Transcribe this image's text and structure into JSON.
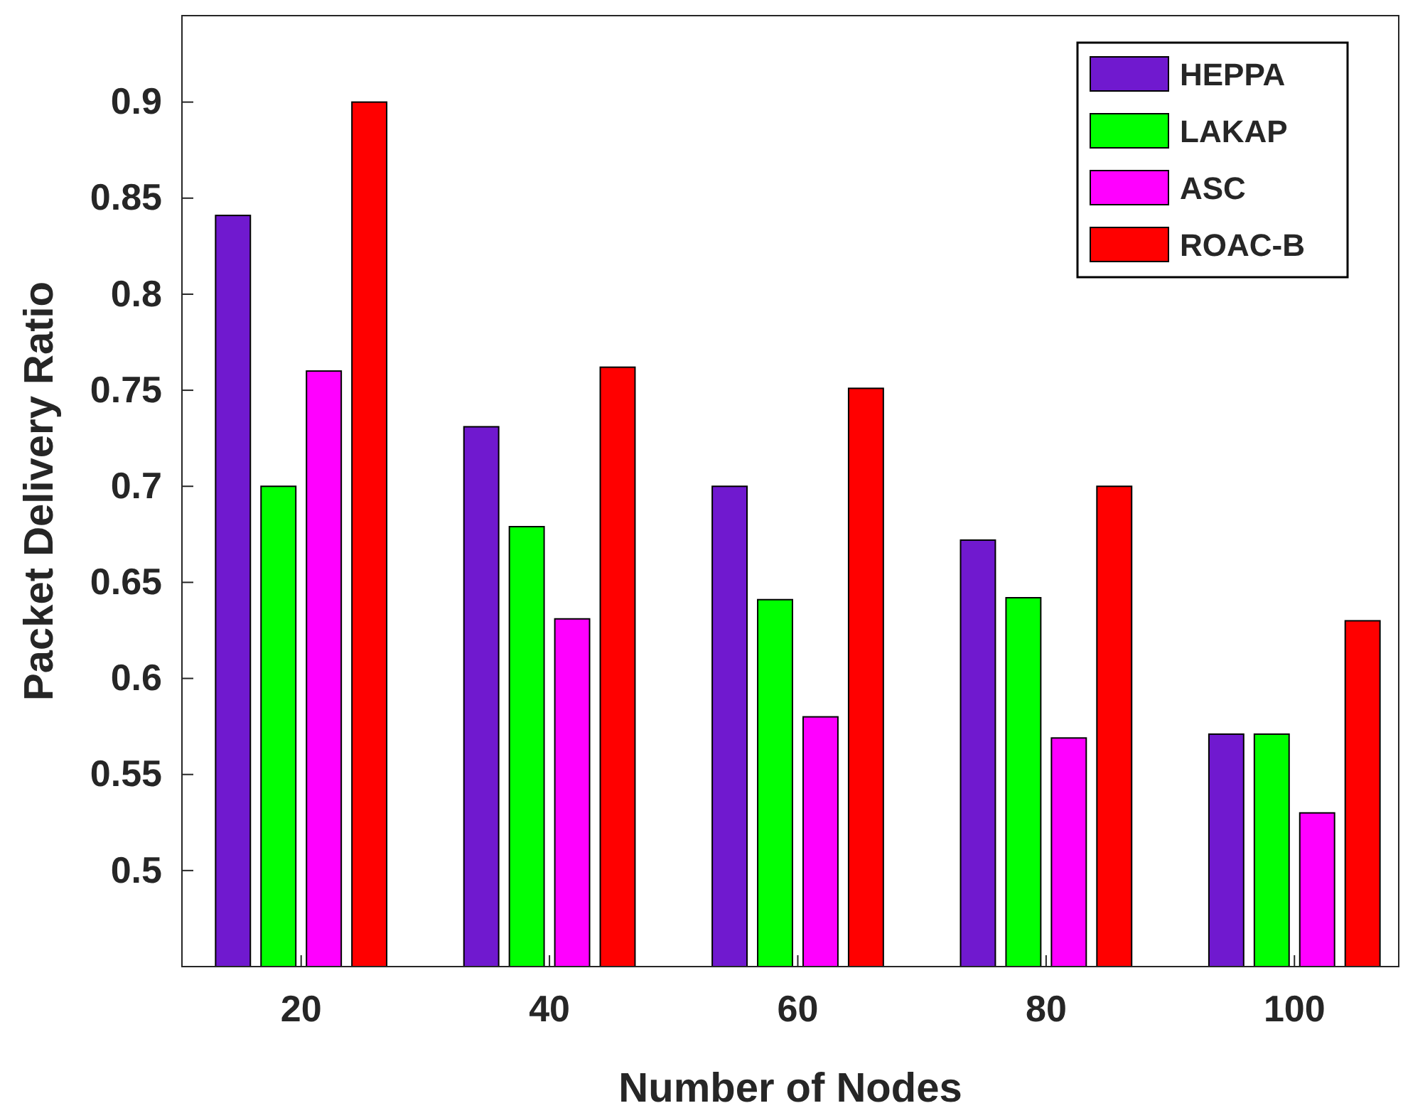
{
  "chart_data": {
    "type": "bar",
    "xlabel": "Number of Nodes",
    "ylabel": "Packet Delivery Ratio",
    "categories": [
      "20",
      "40",
      "60",
      "80",
      "100"
    ],
    "series": [
      {
        "name": "HEPPA",
        "color": "#7019cf",
        "values": [
          0.841,
          0.731,
          0.7,
          0.672,
          0.571
        ]
      },
      {
        "name": "LAKAP",
        "color": "#00ff00",
        "values": [
          0.7,
          0.679,
          0.641,
          0.642,
          0.571
        ]
      },
      {
        "name": "ASC",
        "color": "#ff00ff",
        "values": [
          0.76,
          0.631,
          0.58,
          0.569,
          0.53
        ]
      },
      {
        "name": "ROAC-B",
        "color": "#ff0000",
        "values": [
          0.9,
          0.762,
          0.751,
          0.7,
          0.63
        ]
      }
    ],
    "ylim": [
      0.45,
      0.945
    ],
    "yticks": [
      0.5,
      0.55,
      0.6,
      0.65,
      0.7,
      0.75,
      0.8,
      0.85,
      0.9
    ],
    "grid": false,
    "legend": "top right"
  }
}
